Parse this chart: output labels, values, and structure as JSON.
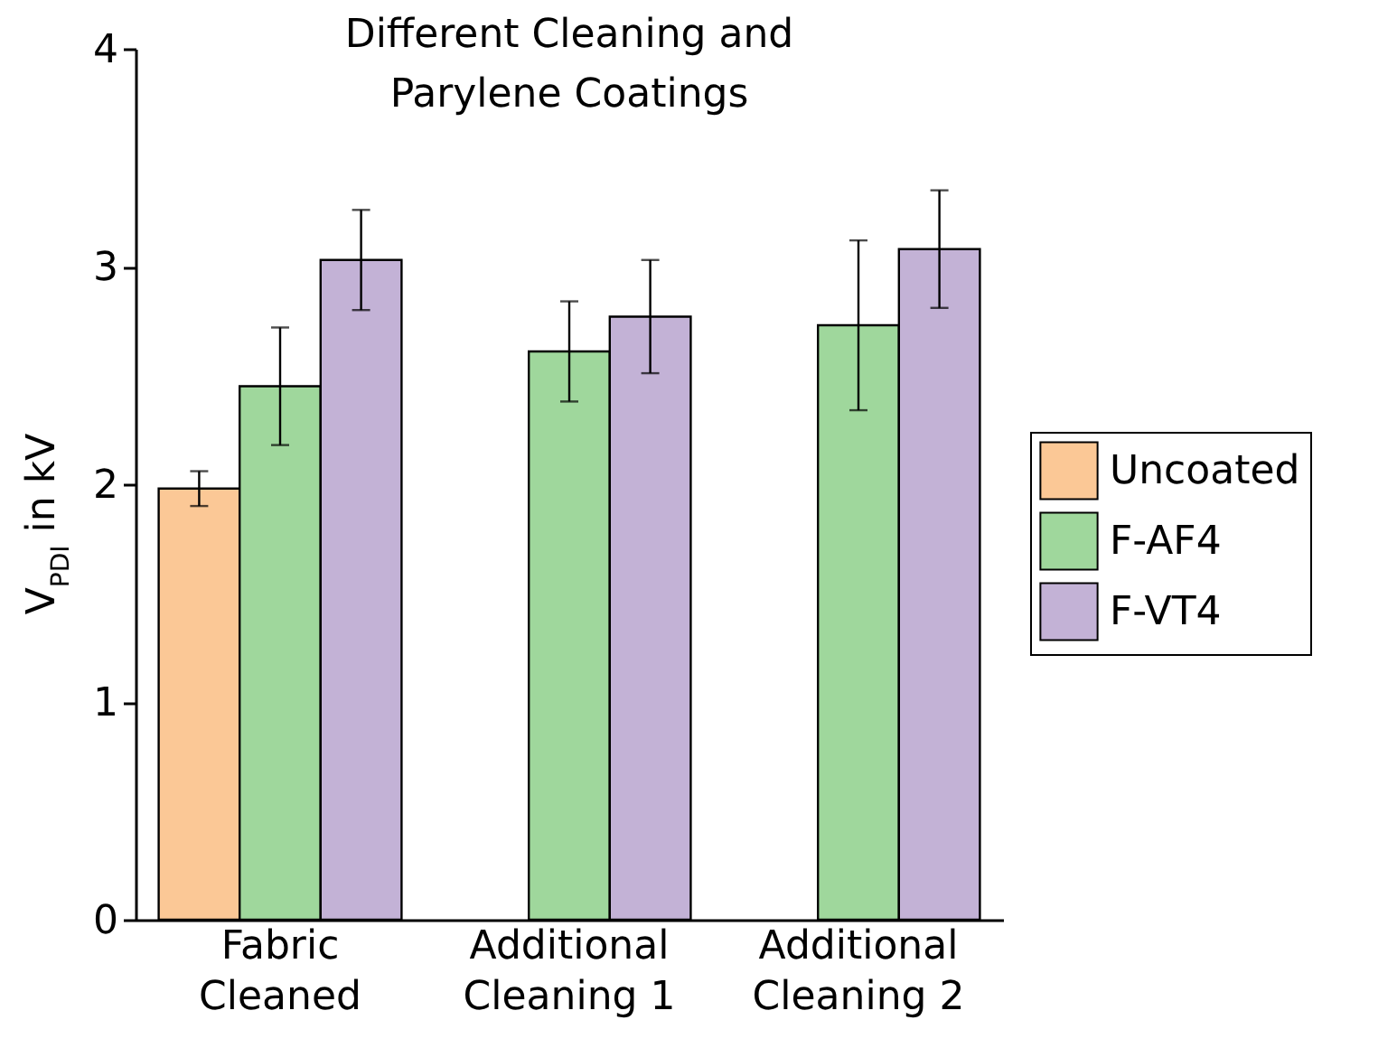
{
  "chart_data": {
    "type": "bar",
    "title": "Different Cleaning and Parylene Coatings",
    "ylabel": "V$_{PDI}$ in kV",
    "categories": [
      "Fabric Cleaned",
      "Additional Cleaning 1",
      "Additional Cleaning 2"
    ],
    "series": [
      {
        "name": "Uncoated",
        "color": "#fbc896",
        "values": [
          1.98,
          null,
          null
        ],
        "errors": [
          0.08,
          null,
          null
        ]
      },
      {
        "name": "F-AF4",
        "color": "#9fd79c",
        "values": [
          2.45,
          2.61,
          2.73
        ],
        "errors": [
          0.27,
          0.23,
          0.39
        ]
      },
      {
        "name": "F-VT4",
        "color": "#c3b2d6",
        "values": [
          3.03,
          2.77,
          3.08
        ],
        "errors": [
          0.23,
          0.26,
          0.27
        ]
      }
    ],
    "ylim": [
      0,
      4
    ],
    "yticks": [
      0,
      1,
      2,
      3,
      4
    ],
    "grid": false,
    "legend": "right"
  }
}
